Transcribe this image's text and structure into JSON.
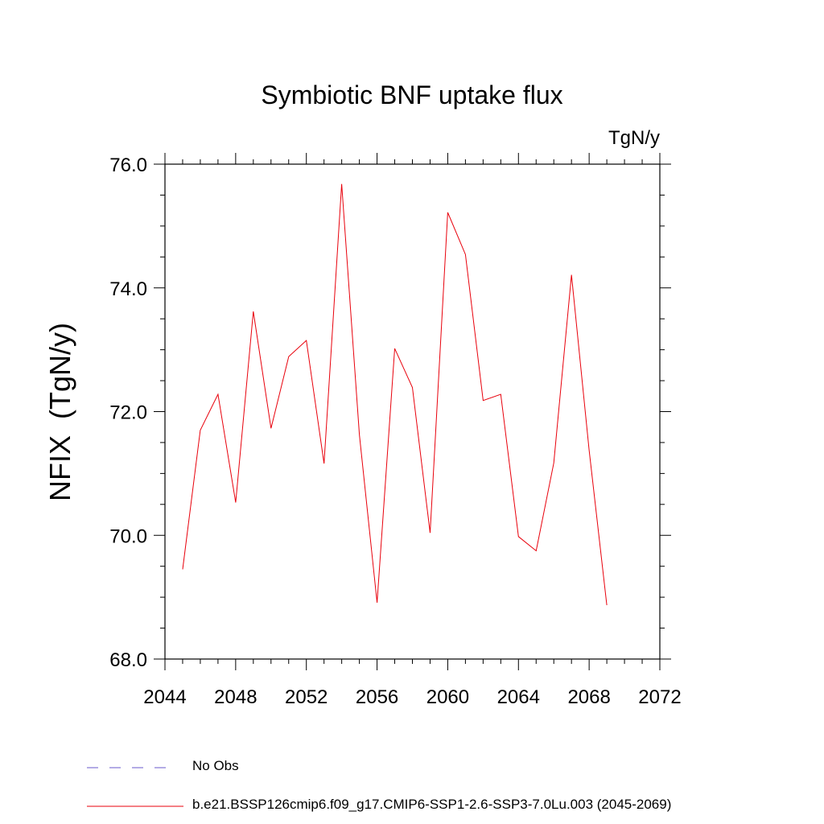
{
  "chart_data": {
    "type": "line",
    "title": "Symbiotic BNF uptake flux",
    "units_label": "TgN/y",
    "ylabel": "NFIX  (TgN/y)",
    "xlim": [
      2044,
      2072
    ],
    "ylim": [
      68,
      76
    ],
    "x_ticks": [
      2044,
      2048,
      2052,
      2056,
      2060,
      2064,
      2068,
      2072
    ],
    "y_ticks": [
      "68.0",
      "70.0",
      "72.0",
      "74.0",
      "76.0"
    ],
    "grid": false,
    "legend_position": "bottom",
    "series": [
      {
        "name": "b.e21.BSSP126cmip6.f09_g17.CMIP6-SSP1-2.6-SSP3-7.0Lu.003 (2045-2069)",
        "color": "#e8000b",
        "x": [
          2045,
          2046,
          2047,
          2048,
          2049,
          2050,
          2051,
          2052,
          2053,
          2054,
          2055,
          2056,
          2057,
          2058,
          2059,
          2060,
          2061,
          2062,
          2063,
          2064,
          2065,
          2066,
          2067,
          2068,
          2069
        ],
        "y": [
          69.45,
          71.7,
          72.28,
          70.53,
          73.62,
          71.73,
          72.89,
          73.15,
          71.16,
          75.68,
          71.63,
          68.91,
          73.02,
          72.39,
          70.04,
          75.22,
          74.54,
          72.18,
          72.28,
          69.98,
          69.75,
          71.17,
          74.21,
          71.38,
          68.87
        ]
      }
    ],
    "legend": [
      {
        "label": "No Obs",
        "style": "dashed",
        "color": "#6a5acd"
      },
      {
        "label": "b.e21.BSSP126cmip6.f09_g17.CMIP6-SSP1-2.6-SSP3-7.0Lu.003 (2045-2069)",
        "style": "solid",
        "color": "#e8000b"
      }
    ]
  }
}
